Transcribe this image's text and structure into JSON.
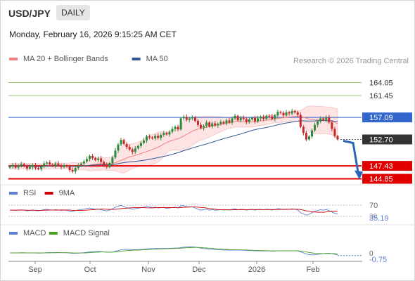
{
  "header": {
    "symbol": "USD/JPY",
    "timeframe": "DAILY",
    "datetime": "Monday, February 16, 2026 9:15:25 AM CET",
    "credit": "Research © 2026 Trading Central"
  },
  "colors": {
    "ma20": "#f08080",
    "ma50": "#2f5597",
    "band_fill": "#fde3e3",
    "support": "#e00000",
    "resistance_minor": "#9acd6a",
    "pivot": "#3366cc",
    "price_tag": "#333333",
    "arrow": "#2a64b5",
    "bull_candle": "#2e8b3e",
    "bear_candle": "#c62828",
    "rsi": "#5b7fd1",
    "rsi_ma": "#d00000",
    "macd": "#5b7fd1",
    "macd_signal": "#4aa020"
  },
  "chart_data": [
    {
      "type": "candlestick",
      "legend": [
        {
          "name": "MA 20 + Bollinger Bands",
          "color": "#f08080"
        },
        {
          "name": "MA 50",
          "color": "#2f5597"
        }
      ],
      "x_tick_labels": [
        "Sep",
        "Oct",
        "Nov",
        "Dec",
        "2026",
        "Feb"
      ],
      "ylim": [
        143.8,
        166.5
      ],
      "levels": [
        {
          "value": 164.05,
          "label": "164.05",
          "style": "resistance-minor"
        },
        {
          "value": 161.45,
          "label": "161.45",
          "style": "resistance-minor"
        },
        {
          "value": 157.09,
          "label": "157.09",
          "style": "pivot"
        },
        {
          "value": 152.7,
          "label": "152.70",
          "style": "last-price"
        },
        {
          "value": 147.43,
          "label": "147.43",
          "style": "support"
        },
        {
          "value": 144.85,
          "label": "144.85",
          "style": "support"
        }
      ],
      "forecast_arrow": {
        "from": 152.7,
        "to": 144.85
      },
      "closes": [
        147.3,
        147.6,
        147.1,
        147.5,
        147.8,
        147.4,
        146.9,
        147.2,
        147.6,
        147.0,
        146.8,
        147.3,
        147.9,
        148.1,
        147.7,
        147.4,
        147.9,
        147.6,
        147.2,
        147.5,
        147.3,
        146.6,
        146.3,
        147.0,
        147.5,
        147.9,
        148.3,
        148.8,
        149.4,
        149.0,
        148.6,
        148.9,
        148.2,
        147.7,
        147.2,
        148.0,
        149.1,
        150.5,
        151.7,
        152.6,
        151.8,
        151.2,
        150.7,
        150.2,
        150.9,
        151.4,
        152.0,
        152.5,
        153.3,
        153.1,
        152.9,
        153.4,
        153.0,
        153.6,
        154.0,
        153.7,
        154.2,
        154.8,
        155.2,
        154.7,
        156.9,
        157.2,
        156.6,
        156.9,
        157.1,
        156.4,
        155.6,
        155.0,
        155.4,
        156.1,
        155.3,
        155.9,
        155.5,
        155.8,
        156.2,
        155.9,
        156.5,
        156.1,
        156.9,
        157.4,
        156.5,
        157.0,
        156.8,
        156.2,
        156.7,
        157.0,
        156.3,
        156.9,
        157.2,
        156.8,
        157.4,
        157.3,
        156.8,
        157.5,
        158.2,
        158.0,
        157.5,
        158.1,
        157.9,
        158.4,
        158.1,
        157.6,
        155.2,
        154.0,
        152.7,
        153.3,
        154.5,
        155.6,
        156.3,
        156.9,
        156.6,
        157.1,
        156.1,
        154.8,
        153.4,
        152.7
      ],
      "rsi": {
        "legend": [
          {
            "name": "RSI",
            "color": "#5b7fd1"
          },
          {
            "name": "9MA",
            "color": "#d00000"
          }
        ],
        "tick_labels": [
          "70",
          "30"
        ],
        "last_value": "35.19"
      },
      "macd": {
        "legend": [
          {
            "name": "MACD",
            "color": "#5b7fd1"
          },
          {
            "name": "MACD Signal",
            "color": "#4aa020"
          }
        ],
        "tick_labels": [
          "0"
        ],
        "last_value": "-0.75"
      }
    }
  ]
}
